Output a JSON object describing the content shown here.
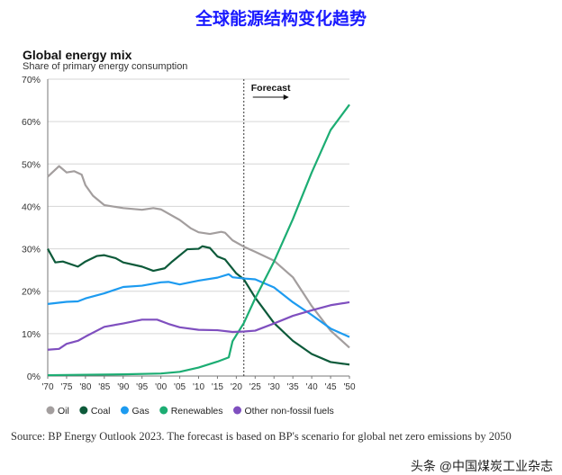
{
  "header": {
    "title": "全球能源结构变化趋势"
  },
  "source": "Source: BP Energy Outlook 2023. The forecast is based on BP's scenario for global net zero emissions by 2050",
  "watermark": "头条 @中国煤炭工业杂志",
  "chart_data": {
    "type": "line",
    "title": "Global energy mix",
    "subtitle": "Share of primary energy consumption",
    "xlabel": "",
    "ylabel": "",
    "xlim": [
      1970,
      2050
    ],
    "ylim": [
      0,
      70
    ],
    "yticks": [
      "0%",
      "10%",
      "20%",
      "30%",
      "40%",
      "50%",
      "60%",
      "70%"
    ],
    "xticks": [
      "'70",
      "'75",
      "'80",
      "'85",
      "'90",
      "'95",
      "'00",
      "'05",
      "'10",
      "'15",
      "'20",
      "'25",
      "'30",
      "'35",
      "'40",
      "'45",
      "'50"
    ],
    "grid": "horizontal",
    "legend": "bottom",
    "annotation": {
      "label": "Forecast",
      "year": 2022
    },
    "series": [
      {
        "name": "Oil",
        "color": "#a39e9e",
        "points": [
          [
            1970,
            47
          ],
          [
            1973,
            49.5
          ],
          [
            1975,
            48
          ],
          [
            1977,
            48.3
          ],
          [
            1979,
            47.5
          ],
          [
            1980,
            45
          ],
          [
            1982,
            42.5
          ],
          [
            1985,
            40.3
          ],
          [
            1990,
            39.6
          ],
          [
            1995,
            39.2
          ],
          [
            1998,
            39.6
          ],
          [
            2000,
            39.3
          ],
          [
            2005,
            36.8
          ],
          [
            2008,
            34.8
          ],
          [
            2010,
            33.9
          ],
          [
            2013,
            33.5
          ],
          [
            2016,
            34
          ],
          [
            2017,
            33.8
          ],
          [
            2019,
            32
          ],
          [
            2022,
            30.5
          ],
          [
            2025,
            29.3
          ],
          [
            2030,
            27.2
          ],
          [
            2035,
            23.3
          ],
          [
            2040,
            16.5
          ],
          [
            2045,
            10.7
          ],
          [
            2050,
            6.7
          ]
        ]
      },
      {
        "name": "Coal",
        "color": "#0d5a3a",
        "points": [
          [
            1970,
            30
          ],
          [
            1972,
            26.8
          ],
          [
            1974,
            27
          ],
          [
            1978,
            25.8
          ],
          [
            1980,
            27
          ],
          [
            1983,
            28.3
          ],
          [
            1985,
            28.5
          ],
          [
            1988,
            27.8
          ],
          [
            1990,
            26.8
          ],
          [
            1995,
            25.8
          ],
          [
            1998,
            24.8
          ],
          [
            2001,
            25.4
          ],
          [
            2003,
            27
          ],
          [
            2007,
            29.9
          ],
          [
            2010,
            30
          ],
          [
            2011,
            30.6
          ],
          [
            2013,
            30.2
          ],
          [
            2015,
            28.2
          ],
          [
            2017,
            27.5
          ],
          [
            2020,
            24.2
          ],
          [
            2022,
            22.8
          ],
          [
            2025,
            18.5
          ],
          [
            2030,
            12.5
          ],
          [
            2035,
            8.3
          ],
          [
            2040,
            5.2
          ],
          [
            2045,
            3.3
          ],
          [
            2050,
            2.7
          ]
        ]
      },
      {
        "name": "Gas",
        "color": "#1d9bf0",
        "points": [
          [
            1970,
            17
          ],
          [
            1975,
            17.5
          ],
          [
            1978,
            17.6
          ],
          [
            1980,
            18.3
          ],
          [
            1985,
            19.5
          ],
          [
            1990,
            21
          ],
          [
            1995,
            21.3
          ],
          [
            2000,
            22.1
          ],
          [
            2002,
            22.2
          ],
          [
            2005,
            21.6
          ],
          [
            2010,
            22.5
          ],
          [
            2015,
            23.2
          ],
          [
            2018,
            24
          ],
          [
            2019,
            23.3
          ],
          [
            2022,
            23
          ],
          [
            2025,
            22.8
          ],
          [
            2030,
            20.9
          ],
          [
            2035,
            17.4
          ],
          [
            2040,
            14.4
          ],
          [
            2045,
            11.2
          ],
          [
            2050,
            9.2
          ]
        ]
      },
      {
        "name": "Renewables",
        "color": "#1cad73",
        "points": [
          [
            1970,
            0.2
          ],
          [
            1980,
            0.3
          ],
          [
            1990,
            0.4
          ],
          [
            2000,
            0.6
          ],
          [
            2005,
            1
          ],
          [
            2010,
            2
          ],
          [
            2015,
            3.4
          ],
          [
            2018,
            4.4
          ],
          [
            2019,
            8.2
          ],
          [
            2022,
            12.5
          ],
          [
            2025,
            18.3
          ],
          [
            2030,
            27
          ],
          [
            2035,
            37
          ],
          [
            2040,
            48
          ],
          [
            2045,
            58
          ],
          [
            2050,
            64
          ]
        ]
      },
      {
        "name": "Other non-fossil fuels",
        "color": "#7f4fbf",
        "points": [
          [
            1970,
            6.2
          ],
          [
            1973,
            6.4
          ],
          [
            1975,
            7.6
          ],
          [
            1978,
            8.3
          ],
          [
            1980,
            9.3
          ],
          [
            1985,
            11.6
          ],
          [
            1990,
            12.4
          ],
          [
            1995,
            13.3
          ],
          [
            1999,
            13.3
          ],
          [
            2002,
            12.3
          ],
          [
            2005,
            11.5
          ],
          [
            2010,
            10.9
          ],
          [
            2015,
            10.8
          ],
          [
            2019,
            10.4
          ],
          [
            2022,
            10.5
          ],
          [
            2025,
            10.7
          ],
          [
            2030,
            12.4
          ],
          [
            2035,
            14.2
          ],
          [
            2040,
            15.5
          ],
          [
            2045,
            16.7
          ],
          [
            2050,
            17.4
          ]
        ]
      }
    ]
  }
}
